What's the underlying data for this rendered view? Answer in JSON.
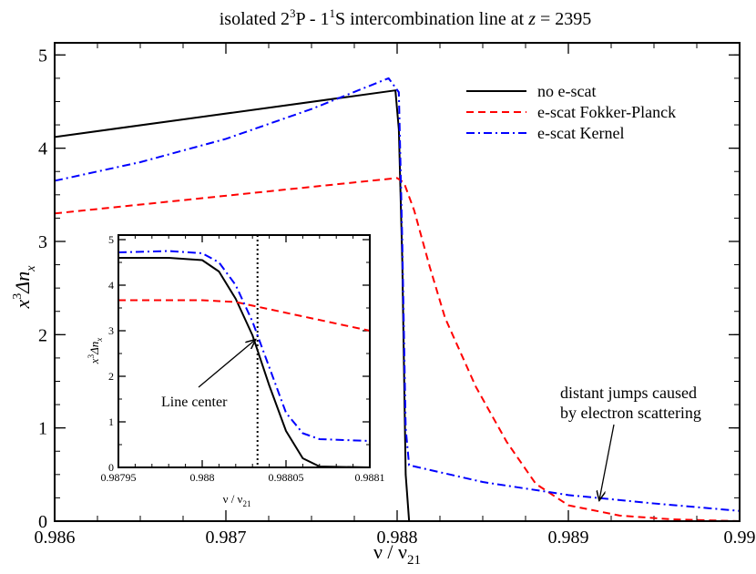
{
  "chart_data": [
    {
      "type": "line",
      "title_parts": {
        "pre": "isolated 2",
        "sup1": "3",
        "mid": "P - 1",
        "sup2": "1",
        "post": "S intercombination line at ",
        "z": "z",
        "eq": " = 2395"
      },
      "xlabel": {
        "base": "ν / ν",
        "sub": "21"
      },
      "ylabel": {
        "x": "x",
        "sup": "3",
        "delta": "Δn",
        "sub": "x"
      },
      "xlim": [
        0.986,
        0.99
      ],
      "ylim": [
        0,
        5.13
      ],
      "xticks": [
        "0.986",
        "0.987",
        "0.988",
        "0.989",
        "0.99"
      ],
      "yticks": [
        "0",
        "1",
        "2",
        "3",
        "4",
        "5"
      ],
      "grid": false,
      "legend_position": "top-right",
      "series": [
        {
          "name": "no e-scat",
          "color": "#000000",
          "dash": "solid",
          "points": [
            [
              0.986,
              4.12
            ],
            [
              0.98799,
              4.62
            ],
            [
              0.98801,
              4.2
            ],
            [
              0.98803,
              2.8
            ],
            [
              0.98805,
              0.5
            ],
            [
              0.98807,
              0
            ],
            [
              0.99,
              0
            ]
          ]
        },
        {
          "name": "e-scat Fokker-Planck",
          "color": "#ff0000",
          "dash": "dashed",
          "points": [
            [
              0.986,
              3.3
            ],
            [
              0.988,
              3.68
            ],
            [
              0.98804,
              3.63
            ],
            [
              0.9881,
              3.33
            ],
            [
              0.98819,
              2.73
            ],
            [
              0.98828,
              2.18
            ],
            [
              0.98846,
              1.44
            ],
            [
              0.98864,
              0.85
            ],
            [
              0.98881,
              0.4
            ],
            [
              0.989,
              0.17
            ],
            [
              0.9893,
              0.06
            ],
            [
              0.9896,
              0.02
            ],
            [
              0.99,
              0
            ]
          ]
        },
        {
          "name": "e-scat Kernel",
          "color": "#0000ff",
          "dash": "dash-dot",
          "points": [
            [
              0.986,
              3.65
            ],
            [
              0.9865,
              3.85
            ],
            [
              0.987,
              4.1
            ],
            [
              0.9875,
              4.42
            ],
            [
              0.98795,
              4.75
            ],
            [
              0.98801,
              4.6
            ],
            [
              0.98803,
              3.0
            ],
            [
              0.98805,
              1.0
            ],
            [
              0.98807,
              0.6
            ],
            [
              0.9885,
              0.42
            ],
            [
              0.989,
              0.28
            ],
            [
              0.9895,
              0.19
            ],
            [
              0.99,
              0.11
            ]
          ]
        }
      ],
      "annotations": [
        {
          "lines": [
            "distant jumps caused",
            "by electron scattering"
          ],
          "arrow_to": [
            0.98918,
            0.2
          ]
        }
      ]
    },
    {
      "type": "line",
      "role": "inset",
      "xlabel": {
        "base": "ν / ν",
        "sub": "21"
      },
      "ylabel": {
        "x": "x",
        "sup": "3",
        "delta": "Δn",
        "sub": "x"
      },
      "xlim": [
        0.98795,
        0.9881
      ],
      "ylim": [
        0,
        5.1
      ],
      "xticks": [
        "0.98795",
        "0.988",
        "0.98805",
        "0.9881"
      ],
      "yticks": [
        "0",
        "1",
        "2",
        "3",
        "4",
        "5"
      ],
      "vline": 0.988033,
      "series": [
        {
          "color": "#000000",
          "dash": "solid",
          "points": [
            [
              0.98795,
              4.6
            ],
            [
              0.98798,
              4.6
            ],
            [
              0.988,
              4.55
            ],
            [
              0.98801,
              4.3
            ],
            [
              0.98802,
              3.7
            ],
            [
              0.98803,
              2.9
            ],
            [
              0.98804,
              1.8
            ],
            [
              0.98805,
              0.8
            ],
            [
              0.98806,
              0.2
            ],
            [
              0.98807,
              0.02
            ],
            [
              0.9881,
              0
            ]
          ]
        },
        {
          "color": "#ff0000",
          "dash": "dashed",
          "points": [
            [
              0.98795,
              3.67
            ],
            [
              0.988,
              3.67
            ],
            [
              0.98802,
              3.63
            ],
            [
              0.9881,
              3.0
            ]
          ]
        },
        {
          "color": "#0000ff",
          "dash": "dash-dot",
          "points": [
            [
              0.98795,
              4.72
            ],
            [
              0.98798,
              4.75
            ],
            [
              0.988,
              4.7
            ],
            [
              0.98801,
              4.5
            ],
            [
              0.98802,
              4.0
            ],
            [
              0.98803,
              3.2
            ],
            [
              0.98804,
              2.2
            ],
            [
              0.98805,
              1.2
            ],
            [
              0.98806,
              0.75
            ],
            [
              0.98807,
              0.62
            ],
            [
              0.9881,
              0.58
            ]
          ]
        }
      ],
      "annotations": [
        {
          "lines": [
            "Line center"
          ],
          "arrow_to": [
            0.988033,
            2.85
          ]
        }
      ]
    }
  ]
}
